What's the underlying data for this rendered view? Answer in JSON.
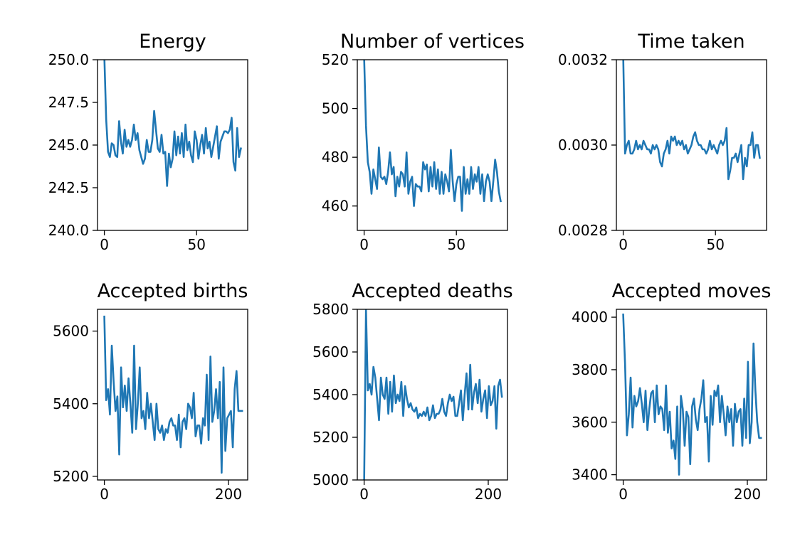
{
  "chart_data": [
    {
      "type": "line",
      "title": "Energy",
      "xlabel": "",
      "ylabel": "",
      "xlim": [
        -3.7,
        77.7
      ],
      "ylim": [
        240.0,
        250.0
      ],
      "xticks": [
        0,
        50
      ],
      "xtick_labels": [
        "0",
        "50"
      ],
      "yticks": [
        240.0,
        242.5,
        245.0,
        247.5,
        250.0
      ],
      "ytick_labels": [
        "240.0",
        "242.5",
        "245.0",
        "247.5",
        "250.0"
      ],
      "grid": false,
      "series": [
        {
          "color": "#1f77b4",
          "x": [
            0,
            1,
            2,
            3,
            4,
            5,
            6,
            7,
            8,
            9,
            10,
            11,
            12,
            13,
            14,
            15,
            16,
            17,
            18,
            19,
            20,
            21,
            22,
            23,
            24,
            25,
            26,
            27,
            28,
            29,
            30,
            31,
            32,
            33,
            34,
            35,
            36,
            37,
            38,
            39,
            40,
            41,
            42,
            43,
            44,
            45,
            46,
            47,
            48,
            49,
            50,
            51,
            52,
            53,
            54,
            55,
            56,
            57,
            58,
            59,
            60,
            61,
            62,
            63,
            64,
            65,
            66,
            67,
            68,
            69,
            70,
            71,
            72,
            73,
            74
          ],
          "y": [
            250.2,
            246.5,
            244.6,
            244.3,
            245.1,
            245.0,
            244.4,
            244.3,
            246.4,
            245.2,
            244.5,
            245.9,
            244.9,
            245.3,
            244.9,
            245.3,
            246.2,
            245.3,
            245.7,
            244.7,
            244.3,
            243.9,
            244.2,
            245.3,
            244.6,
            244.6,
            245.3,
            247.0,
            245.9,
            244.8,
            244.6,
            245.6,
            244.5,
            244.6,
            242.6,
            244.5,
            243.7,
            244.2,
            245.8,
            244.4,
            245.5,
            244.5,
            245.7,
            244.3,
            246.2,
            244.7,
            245.2,
            244.4,
            244.0,
            245.8,
            245.3,
            244.2,
            245.0,
            245.6,
            244.5,
            246.0,
            244.8,
            245.2,
            244.3,
            244.9,
            245.5,
            246.1,
            244.2,
            245.2,
            245.5,
            245.8,
            245.8,
            245.7,
            245.9,
            246.6,
            244.0,
            243.5,
            246.0,
            244.3,
            244.8
          ]
        }
      ]
    },
    {
      "type": "line",
      "title": "Number of vertices",
      "xlabel": "",
      "ylabel": "",
      "xlim": [
        -3.7,
        77.7
      ],
      "ylim": [
        450,
        520
      ],
      "xticks": [
        0,
        50
      ],
      "xtick_labels": [
        "0",
        "50"
      ],
      "yticks": [
        460,
        480,
        500,
        520
      ],
      "ytick_labels": [
        "460",
        "480",
        "500",
        "520"
      ],
      "grid": false,
      "series": [
        {
          "color": "#1f77b4",
          "x": [
            0,
            1,
            2,
            3,
            4,
            5,
            6,
            7,
            8,
            9,
            10,
            11,
            12,
            13,
            14,
            15,
            16,
            17,
            18,
            19,
            20,
            21,
            22,
            23,
            24,
            25,
            26,
            27,
            28,
            29,
            30,
            31,
            32,
            33,
            34,
            35,
            36,
            37,
            38,
            39,
            40,
            41,
            42,
            43,
            44,
            45,
            46,
            47,
            48,
            49,
            50,
            51,
            52,
            53,
            54,
            55,
            56,
            57,
            58,
            59,
            60,
            61,
            62,
            63,
            64,
            65,
            66,
            67,
            68,
            69,
            70,
            71,
            72,
            73,
            74
          ],
          "y": [
            521,
            493,
            478,
            474,
            465,
            475,
            471,
            467,
            484,
            472,
            471,
            472,
            469,
            474,
            482,
            473,
            476,
            464,
            472,
            468,
            474,
            473,
            468,
            482,
            465,
            470,
            472,
            460,
            469,
            468,
            468,
            466,
            478,
            475,
            477,
            466,
            476,
            468,
            478,
            467,
            475,
            465,
            474,
            465,
            473,
            470,
            466,
            483,
            470,
            462,
            469,
            472,
            472,
            458,
            476,
            465,
            471,
            465,
            476,
            467,
            473,
            470,
            476,
            465,
            473,
            462,
            470,
            473,
            470,
            462,
            470,
            479,
            474,
            466,
            462
          ]
        }
      ]
    },
    {
      "type": "line",
      "title": "Time taken",
      "xlabel": "",
      "ylabel": "",
      "xlim": [
        -3.7,
        77.7
      ],
      "ylim": [
        0.0028,
        0.0032
      ],
      "xticks": [
        0,
        50
      ],
      "xtick_labels": [
        "0",
        "50"
      ],
      "yticks": [
        0.0028,
        0.003,
        0.0032
      ],
      "ytick_labels": [
        "0.0028",
        "0.0030",
        "0.0032"
      ],
      "grid": false,
      "series": [
        {
          "color": "#1f77b4",
          "x": [
            0,
            1,
            2,
            3,
            4,
            5,
            6,
            7,
            8,
            9,
            10,
            11,
            12,
            13,
            14,
            15,
            16,
            17,
            18,
            19,
            20,
            21,
            22,
            23,
            24,
            25,
            26,
            27,
            28,
            29,
            30,
            31,
            32,
            33,
            34,
            35,
            36,
            37,
            38,
            39,
            40,
            41,
            42,
            43,
            44,
            45,
            46,
            47,
            48,
            49,
            50,
            51,
            52,
            53,
            54,
            55,
            56,
            57,
            58,
            59,
            60,
            61,
            62,
            63,
            64,
            65,
            66,
            67,
            68,
            69,
            70,
            71,
            72,
            73,
            74
          ],
          "y": [
            0.00321,
            0.00298,
            0.003,
            0.00301,
            0.00298,
            0.00298,
            0.00299,
            0.00301,
            0.00299,
            0.003,
            0.00299,
            0.00301,
            0.003,
            0.00299,
            0.00299,
            0.00298,
            0.003,
            0.00299,
            0.003,
            0.00299,
            0.00296,
            0.00295,
            0.00298,
            0.00299,
            0.00301,
            0.00298,
            0.00302,
            0.00301,
            0.00302,
            0.003,
            0.00301,
            0.003,
            0.00301,
            0.00299,
            0.003,
            0.00298,
            0.00299,
            0.003,
            0.00302,
            0.00303,
            0.00301,
            0.003,
            0.003,
            0.00299,
            0.00299,
            0.00298,
            0.00299,
            0.00301,
            0.00299,
            0.003,
            0.00299,
            0.00298,
            0.003,
            0.00301,
            0.003,
            0.00301,
            0.00304,
            0.00292,
            0.00294,
            0.00297,
            0.00297,
            0.00298,
            0.00296,
            0.00298,
            0.003,
            0.00292,
            0.00297,
            0.00295,
            0.003,
            0.003,
            0.00303,
            0.00297,
            0.003,
            0.003,
            0.00297
          ]
        }
      ]
    },
    {
      "type": "line",
      "title": "Accepted births",
      "xlabel": "",
      "ylabel": "",
      "xlim": [
        -11,
        231
      ],
      "ylim": [
        5190,
        5660
      ],
      "xticks": [
        0,
        200
      ],
      "xtick_labels": [
        "0",
        "200"
      ],
      "yticks": [
        5200,
        5400,
        5600
      ],
      "ytick_labels": [
        "5200",
        "5400",
        "5600"
      ],
      "grid": false,
      "series": [
        {
          "color": "#1f77b4",
          "x": [
            0,
            3,
            6,
            9,
            12,
            15,
            18,
            21,
            24,
            27,
            30,
            33,
            36,
            39,
            42,
            45,
            48,
            51,
            54,
            57,
            60,
            63,
            66,
            69,
            72,
            75,
            78,
            81,
            84,
            87,
            90,
            93,
            96,
            99,
            102,
            105,
            108,
            111,
            114,
            117,
            120,
            123,
            126,
            129,
            132,
            135,
            138,
            141,
            144,
            147,
            150,
            153,
            156,
            159,
            162,
            165,
            168,
            171,
            174,
            177,
            180,
            183,
            186,
            189,
            192,
            195,
            198,
            201,
            204,
            207,
            210,
            213,
            216,
            219,
            222
          ],
          "y": [
            5640,
            5410,
            5440,
            5370,
            5560,
            5460,
            5380,
            5420,
            5260,
            5500,
            5390,
            5450,
            5380,
            5470,
            5400,
            5320,
            5560,
            5330,
            5400,
            5500,
            5360,
            5380,
            5330,
            5430,
            5360,
            5400,
            5350,
            5300,
            5400,
            5330,
            5320,
            5340,
            5300,
            5330,
            5320,
            5350,
            5360,
            5340,
            5340,
            5300,
            5370,
            5280,
            5350,
            5360,
            5330,
            5400,
            5390,
            5360,
            5430,
            5310,
            5340,
            5340,
            5290,
            5360,
            5340,
            5480,
            5300,
            5530,
            5350,
            5380,
            5440,
            5360,
            5460,
            5210,
            5500,
            5270,
            5360,
            5370,
            5380,
            5280,
            5440,
            5490,
            5380,
            5380,
            5380
          ]
        }
      ]
    },
    {
      "type": "line",
      "title": "Accepted deaths",
      "xlabel": "",
      "ylabel": "",
      "xlim": [
        -11,
        231
      ],
      "ylim": [
        5000,
        5800
      ],
      "xticks": [
        0,
        200
      ],
      "xtick_labels": [
        "0",
        "200"
      ],
      "yticks": [
        5000,
        5200,
        5400,
        5600,
        5800
      ],
      "ytick_labels": [
        "5000",
        "5200",
        "5400",
        "5600",
        "5800"
      ],
      "grid": false,
      "series": [
        {
          "color": "#1f77b4",
          "x": [
            0,
            3,
            6,
            9,
            12,
            15,
            18,
            21,
            24,
            27,
            30,
            33,
            36,
            39,
            42,
            45,
            48,
            51,
            54,
            57,
            60,
            63,
            66,
            69,
            72,
            75,
            78,
            81,
            84,
            87,
            90,
            93,
            96,
            99,
            102,
            105,
            108,
            111,
            114,
            117,
            120,
            123,
            126,
            129,
            132,
            135,
            138,
            141,
            144,
            147,
            150,
            153,
            156,
            159,
            162,
            165,
            168,
            171,
            174,
            177,
            180,
            183,
            186,
            189,
            192,
            195,
            198,
            201,
            204,
            207,
            210,
            213,
            216,
            219,
            222
          ],
          "y": [
            4980,
            5800,
            5420,
            5450,
            5400,
            5530,
            5480,
            5380,
            5280,
            5480,
            5400,
            5380,
            5480,
            5310,
            5460,
            5320,
            5490,
            5360,
            5400,
            5370,
            5460,
            5300,
            5440,
            5380,
            5340,
            5360,
            5330,
            5320,
            5340,
            5290,
            5310,
            5300,
            5320,
            5300,
            5340,
            5280,
            5300,
            5350,
            5290,
            5310,
            5310,
            5330,
            5380,
            5320,
            5300,
            5360,
            5400,
            5370,
            5390,
            5300,
            5300,
            5360,
            5420,
            5280,
            5400,
            5500,
            5330,
            5540,
            5330,
            5410,
            5450,
            5360,
            5470,
            5320,
            5380,
            5420,
            5290,
            5440,
            5350,
            5370,
            5440,
            5240,
            5440,
            5470,
            5390
          ]
        }
      ]
    },
    {
      "type": "line",
      "title": "Accepted moves",
      "xlabel": "",
      "ylabel": "",
      "xlim": [
        -11,
        231
      ],
      "ylim": [
        3380,
        4030
      ],
      "xticks": [
        0,
        200
      ],
      "xtick_labels": [
        "0",
        "200"
      ],
      "yticks": [
        3400,
        3600,
        3800,
        4000
      ],
      "ytick_labels": [
        "3400",
        "3600",
        "3800",
        "4000"
      ],
      "grid": false,
      "series": [
        {
          "color": "#1f77b4",
          "x": [
            0,
            3,
            6,
            9,
            12,
            15,
            18,
            21,
            24,
            27,
            30,
            33,
            36,
            39,
            42,
            45,
            48,
            51,
            54,
            57,
            60,
            63,
            66,
            69,
            72,
            75,
            78,
            81,
            84,
            87,
            90,
            93,
            96,
            99,
            102,
            105,
            108,
            111,
            114,
            117,
            120,
            123,
            126,
            129,
            132,
            135,
            138,
            141,
            144,
            147,
            150,
            153,
            156,
            159,
            162,
            165,
            168,
            171,
            174,
            177,
            180,
            183,
            186,
            189,
            192,
            195,
            198,
            201,
            204,
            207,
            210,
            213,
            216,
            219,
            222
          ],
          "y": [
            4010,
            3820,
            3550,
            3630,
            3770,
            3580,
            3700,
            3660,
            3680,
            3730,
            3670,
            3600,
            3720,
            3570,
            3650,
            3710,
            3720,
            3600,
            3740,
            3630,
            3660,
            3650,
            3570,
            3740,
            3560,
            3640,
            3500,
            3530,
            3460,
            3660,
            3400,
            3700,
            3650,
            3510,
            3640,
            3620,
            3440,
            3660,
            3690,
            3610,
            3570,
            3650,
            3690,
            3760,
            3600,
            3620,
            3450,
            3700,
            3590,
            3720,
            3700,
            3740,
            3600,
            3700,
            3630,
            3550,
            3660,
            3600,
            3650,
            3510,
            3670,
            3600,
            3640,
            3650,
            3510,
            3690,
            3540,
            3830,
            3520,
            3600,
            3900,
            3720,
            3600,
            3540,
            3540
          ]
        }
      ]
    }
  ]
}
